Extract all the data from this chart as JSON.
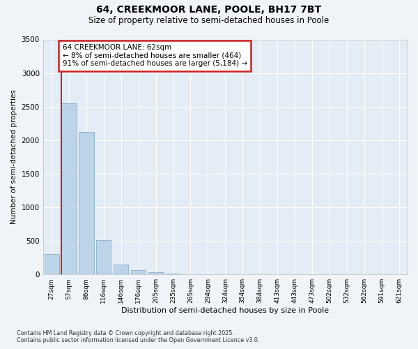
{
  "title1": "64, CREEKMOOR LANE, POOLE, BH17 7BT",
  "title2": "Size of property relative to semi-detached houses in Poole",
  "xlabel": "Distribution of semi-detached houses by size in Poole",
  "ylabel": "Number of semi-detached properties",
  "categories": [
    "27sqm",
    "57sqm",
    "86sqm",
    "116sqm",
    "146sqm",
    "176sqm",
    "205sqm",
    "235sqm",
    "265sqm",
    "294sqm",
    "324sqm",
    "354sqm",
    "384sqm",
    "413sqm",
    "443sqm",
    "473sqm",
    "502sqm",
    "532sqm",
    "562sqm",
    "591sqm",
    "621sqm"
  ],
  "values": [
    300,
    2550,
    2120,
    510,
    150,
    65,
    35,
    10,
    5,
    2,
    1,
    1,
    0,
    0,
    0,
    0,
    0,
    0,
    0,
    0,
    0
  ],
  "bar_color": "#bdd4e8",
  "bar_edge_color": "#8aafc8",
  "highlight_color": "#cc2222",
  "annotation_title": "64 CREEKMOOR LANE: 62sqm",
  "annotation_line1": "← 8% of semi-detached houses are smaller (464)",
  "annotation_line2": "91% of semi-detached houses are larger (5,184) →",
  "ylim": [
    0,
    3500
  ],
  "yticks": [
    0,
    500,
    1000,
    1500,
    2000,
    2500,
    3000,
    3500
  ],
  "footer1": "Contains HM Land Registry data © Crown copyright and database right 2025.",
  "footer2": "Contains public sector information licensed under the Open Government Licence v3.0.",
  "bg_color": "#f0f4f8",
  "plot_bg_color": "#e4edf5"
}
